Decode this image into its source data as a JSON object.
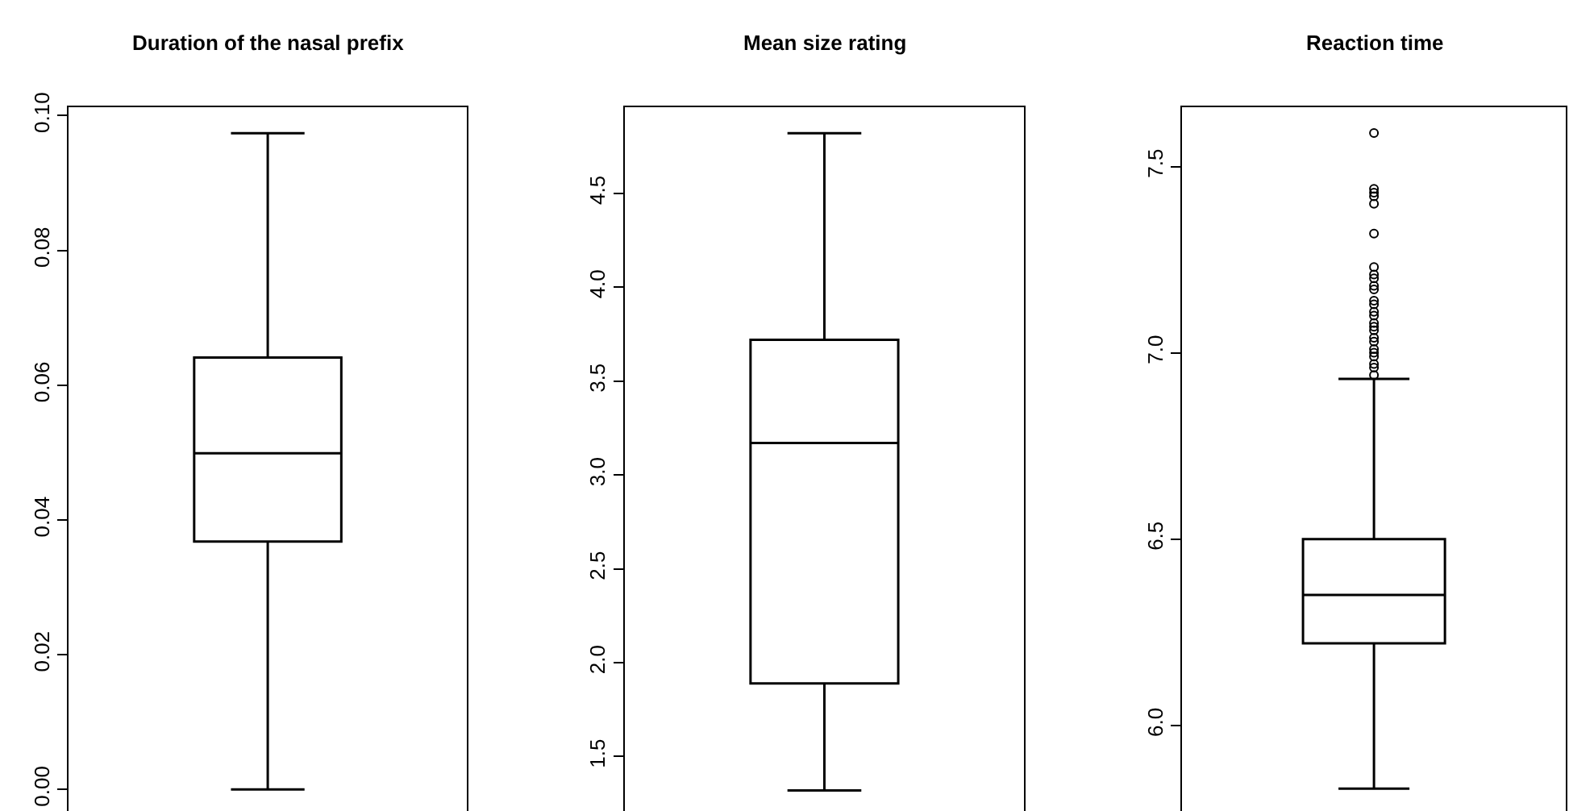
{
  "chart_data": [
    {
      "type": "box",
      "title": "Duration of the nasal prefix",
      "categories": [
        null
      ],
      "tick_labels": "y",
      "ylim": [
        -0.0032,
        0.1013
      ],
      "yticks": [
        {
          "value": 0.0,
          "label": "0.00"
        },
        0.02,
        0.04,
        0.06,
        0.08,
        {
          "value": 0.1,
          "label": "0.10"
        }
      ],
      "boxes": [
        {
          "low": 0.0,
          "q1": 0.0368,
          "median": 0.0499,
          "q3": 0.0641,
          "high": 0.0974
        }
      ]
    },
    {
      "type": "box",
      "title": "Mean size rating",
      "categories": [
        null
      ],
      "tick_labels": "y",
      "ylim": [
        1.21,
        4.96
      ],
      "yticks": [
        1.5,
        {
          "value": 2,
          "label": "2.0"
        },
        2.5,
        {
          "value": 3,
          "label": "3.0"
        },
        3.5,
        {
          "value": 4,
          "label": "4.0"
        },
        4.5
      ],
      "boxes": [
        {
          "low": 1.32,
          "q1": 1.89,
          "median": 3.17,
          "q3": 3.72,
          "high": 4.82
        }
      ]
    },
    {
      "type": "box",
      "title": "Reaction time",
      "categories": [
        null
      ],
      "tick_labels": "y",
      "ylim": [
        5.77,
        7.66
      ],
      "yticks": [
        {
          "value": 6,
          "label": "6.0"
        },
        6.5,
        {
          "value": 7,
          "label": "7.0"
        },
        7.5
      ],
      "boxes": [
        {
          "low": 5.83,
          "q1": 6.22,
          "median": 6.35,
          "q3": 6.5,
          "high": 6.93,
          "outliers": [
            7.59,
            7.44,
            7.43,
            7.42,
            7.4,
            7.32,
            7.23,
            7.21,
            7.2,
            7.18,
            7.17,
            7.14,
            7.13,
            7.11,
            7.1,
            7.08,
            7.07,
            7.06,
            7.04,
            7.03,
            7.01,
            7.0,
            6.99,
            6.97,
            6.96,
            6.94
          ]
        }
      ]
    }
  ]
}
